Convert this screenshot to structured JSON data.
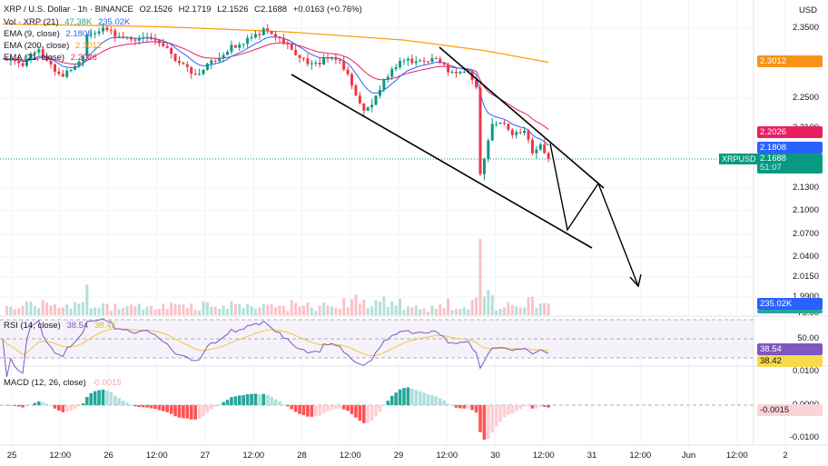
{
  "header": {
    "symbol": "XRP / U.S. Dollar · 1h · BINANCE",
    "open": "O2.1526",
    "high": "H2.1719",
    "low": "L2.1526",
    "close": "C2.1688",
    "change": "+0.0163 (+0.76%)"
  },
  "legend": {
    "vol": {
      "label": "Vol · XRP (21)",
      "v1": "47.38K",
      "v2": "235.02K"
    },
    "ema9": {
      "label": "EMA (9, close)",
      "value": "2.1808"
    },
    "ema200": {
      "label": "EMA (200, close)",
      "value": "2.3012"
    },
    "ema21": {
      "label": "EMA (21, close)",
      "value": "2.2026"
    },
    "rsi": {
      "label": "RSI (14, close)",
      "v1": "38.54",
      "v2": "38.42"
    },
    "macd": {
      "label": "MACD (12, 26, close)",
      "value": "-0.0015"
    }
  },
  "price_axis": {
    "currency": "USD",
    "ticks": [
      "2.3500",
      "2.2500",
      "2.2100",
      "2.1300",
      "2.1000",
      "2.0700",
      "2.0400",
      "2.0150",
      "1.9900"
    ],
    "rsi_ticks": [
      "75.00",
      "50.00"
    ],
    "macd_ticks": [
      "0.0100",
      "0.0000",
      "-0.0100"
    ]
  },
  "badges": {
    "ema200": "2.3012",
    "ema21": "2.2026",
    "ema9": "2.1808",
    "symbol": "XRPUSD",
    "price": "2.1688",
    "countdown": "51:07",
    "volume": "235.02K",
    "volume2": "47.38K",
    "rsi": "38.54",
    "rsi_ma": "38.42",
    "macd": "-0.0015"
  },
  "time_axis": [
    "25",
    "12:00",
    "26",
    "12:00",
    "27",
    "12:00",
    "28",
    "12:00",
    "29",
    "12:00",
    "30",
    "12:00",
    "31",
    "12:00",
    "Jun",
    "12:00",
    "2"
  ],
  "colors": {
    "up": "#089981",
    "down": "#f23645",
    "ema9": "#2962ff",
    "ema21": "#e91e63",
    "ema200": "#ff9800",
    "rsi": "#7e57c2",
    "rsi_ma": "#f5c542"
  },
  "chart_data": {
    "type": "candlestick",
    "interval": "1h",
    "close_keypoints": [
      [
        0,
        2.31
      ],
      [
        5,
        2.3
      ],
      [
        9,
        2.315
      ],
      [
        12,
        2.295
      ],
      [
        15,
        2.285
      ],
      [
        18,
        2.3
      ],
      [
        20,
        2.31
      ],
      [
        21,
        2.338
      ],
      [
        25,
        2.345
      ],
      [
        30,
        2.34
      ],
      [
        36,
        2.335
      ],
      [
        40,
        2.32
      ],
      [
        45,
        2.3
      ],
      [
        48,
        2.285
      ],
      [
        50,
        2.29
      ],
      [
        55,
        2.31
      ],
      [
        58,
        2.325
      ],
      [
        62,
        2.34
      ],
      [
        65,
        2.345
      ],
      [
        68,
        2.335
      ],
      [
        72,
        2.32
      ],
      [
        77,
        2.3
      ],
      [
        80,
        2.305
      ],
      [
        84,
        2.3
      ],
      [
        87,
        2.27
      ],
      [
        90,
        2.235
      ],
      [
        92,
        2.245
      ],
      [
        96,
        2.28
      ],
      [
        99,
        2.3
      ],
      [
        103,
        2.305
      ],
      [
        108,
        2.31
      ],
      [
        111,
        2.285
      ],
      [
        116,
        2.285
      ],
      [
        118,
        2.27
      ],
      [
        119,
        2.15
      ],
      [
        120,
        2.17
      ],
      [
        122,
        2.22
      ],
      [
        124,
        2.215
      ],
      [
        127,
        2.2
      ],
      [
        130,
        2.205
      ],
      [
        132,
        2.18
      ],
      [
        134,
        2.19
      ],
      [
        136,
        2.1688
      ]
    ],
    "ema200_keypoints": [
      [
        0,
        2.356
      ],
      [
        40,
        2.352
      ],
      [
        70,
        2.345
      ],
      [
        100,
        2.333
      ],
      [
        120,
        2.318
      ],
      [
        136,
        2.3012
      ]
    ],
    "volume_spike_index": 119
  }
}
